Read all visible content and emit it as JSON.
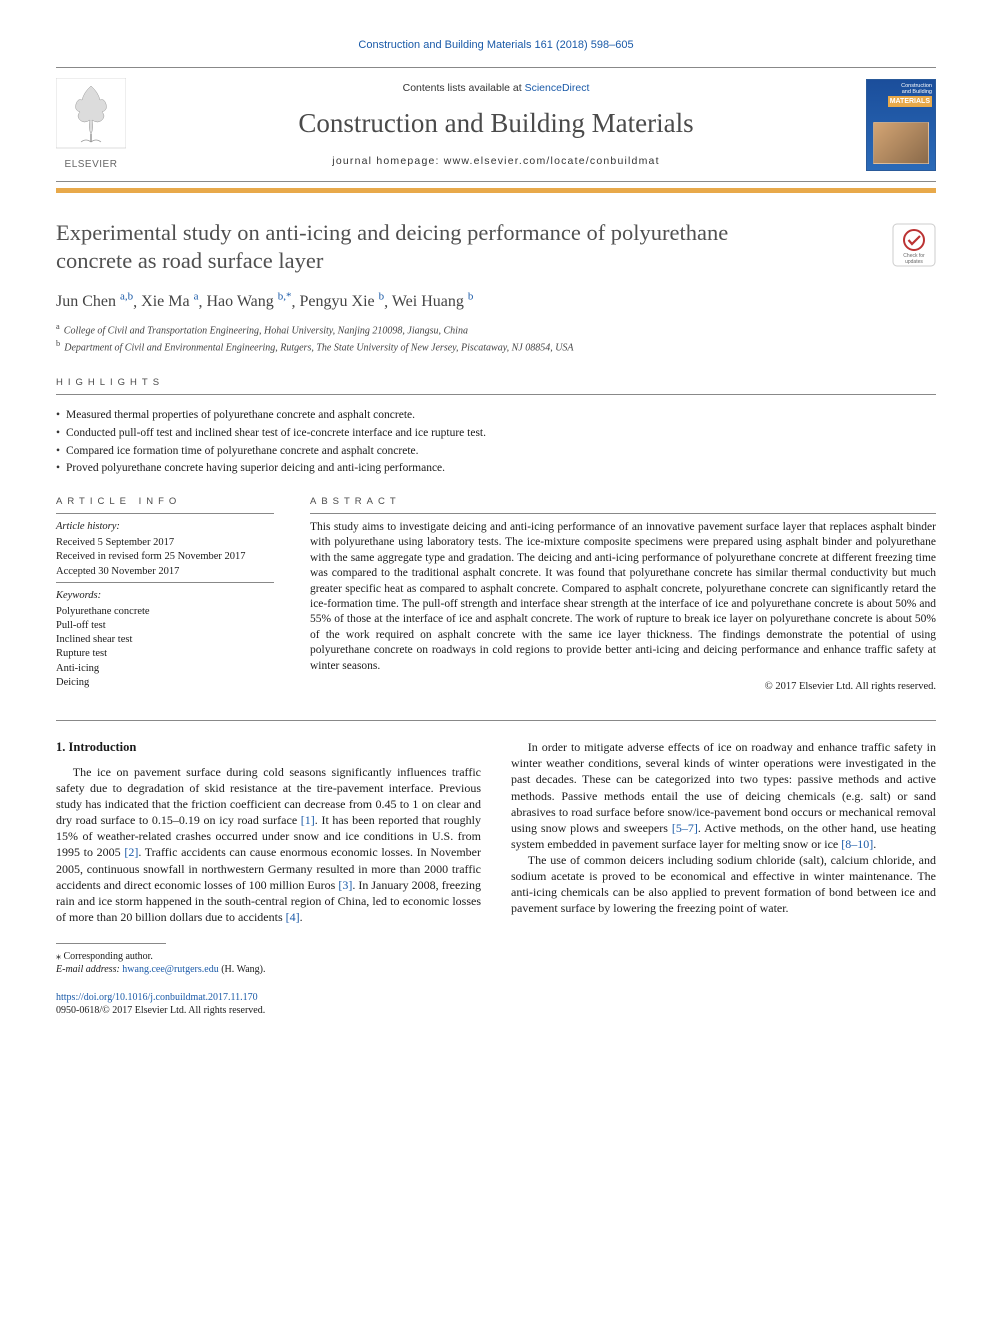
{
  "citation_header": "Construction and Building Materials 161 (2018) 598–605",
  "header": {
    "contents_prefix": "Contents lists available at ",
    "contents_link": "ScienceDirect",
    "journal_name": "Construction and Building Materials",
    "homepage_prefix": "journal homepage: ",
    "homepage_url": "www.elsevier.com/locate/conbuildmat",
    "elsevier_label": "ELSEVIER",
    "cover": {
      "line1": "Construction",
      "line2": "and Building",
      "mat": "MATERIALS"
    }
  },
  "title": "Experimental study on anti-icing and deicing performance of polyurethane concrete as road surface layer",
  "authors": [
    {
      "name": "Jun Chen",
      "sup": "a,b"
    },
    {
      "name": "Xie Ma",
      "sup": "a"
    },
    {
      "name": "Hao Wang",
      "sup": "b,",
      "corr": true
    },
    {
      "name": "Pengyu Xie",
      "sup": "b"
    },
    {
      "name": "Wei Huang",
      "sup": "b"
    }
  ],
  "affiliations": [
    {
      "letter": "a",
      "text": "College of Civil and Transportation Engineering, Hohai University, Nanjing 210098, Jiangsu, China"
    },
    {
      "letter": "b",
      "text": "Department of Civil and Environmental Engineering, Rutgers, The State University of New Jersey, Piscataway, NJ 08854, USA"
    }
  ],
  "labels": {
    "highlights": "HIGHLIGHTS",
    "article_info": "ARTICLE INFO",
    "abstract": "ABSTRACT",
    "article_history": "Article history:",
    "keywords": "Keywords:"
  },
  "highlights": [
    "Measured thermal properties of polyurethane concrete and asphalt concrete.",
    "Conducted pull-off test and inclined shear test of ice-concrete interface and ice rupture test.",
    "Compared ice formation time of polyurethane concrete and asphalt concrete.",
    "Proved polyurethane concrete having superior deicing and anti-icing performance."
  ],
  "article_history": [
    "Received 5 September 2017",
    "Received in revised form 25 November 2017",
    "Accepted 30 November 2017"
  ],
  "keywords": [
    "Polyurethane concrete",
    "Pull-off test",
    "Inclined shear test",
    "Rupture test",
    "Anti-icing",
    "Deicing"
  ],
  "abstract": "This study aims to investigate deicing and anti-icing performance of an innovative pavement surface layer that replaces asphalt binder with polyurethane using laboratory tests. The ice-mixture composite specimens were prepared using asphalt binder and polyurethane with the same aggregate type and gradation. The deicing and anti-icing performance of polyurethane concrete at different freezing time was compared to the traditional asphalt concrete. It was found that polyurethane concrete has similar thermal conductivity but much greater specific heat as compared to asphalt concrete. Compared to asphalt concrete, polyurethane concrete can significantly retard the ice-formation time. The pull-off strength and interface shear strength at the interface of ice and polyurethane concrete is about 50% and 55% of those at the interface of ice and asphalt concrete. The work of rupture to break ice layer on polyurethane concrete is about 50% of the work required on asphalt concrete with the same ice layer thickness. The findings demonstrate the potential of using polyurethane concrete on roadways in cold regions to provide better anti-icing and deicing performance and enhance traffic safety at winter seasons.",
  "copyright": "© 2017 Elsevier Ltd. All rights reserved.",
  "section1_title": "1. Introduction",
  "body": {
    "p1a": "The ice on pavement surface during cold seasons significantly influences traffic safety due to degradation of skid resistance at the tire-pavement interface. Previous study has indicated that the friction coefficient can decrease from 0.45 to 1 on clear and dry road surface to 0.15–0.19 on icy road surface ",
    "r1": "[1]",
    "p1b": ". It has been reported that roughly 15% of weather-related crashes occurred under snow and ice conditions in U.S. from 1995 to 2005 ",
    "r2": "[2]",
    "p1c": ". Traffic accidents can cause enormous economic losses. In November 2005, continuous snowfall in northwestern Germany resulted in more than 2000 traffic accidents and direct economic losses of 100 million Euros ",
    "r3": "[3]",
    "p1d": ". In January 2008, freezing rain and ice storm happened in the south-central region of China, led to economic losses of more than 20 billion dollars due to accidents ",
    "r4": "[4]",
    "p1e": ".",
    "p2a": "In order to mitigate adverse effects of ice on roadway and enhance traffic safety in winter weather conditions, several kinds of winter operations were investigated in the past decades. These can be categorized into two types: passive methods and active methods. Passive methods entail the use of deicing chemicals (e.g. salt) or sand abrasives to road surface before snow/ice-pavement bond occurs or mechanical removal using snow plows and sweepers ",
    "r57": "[5–7]",
    "p2b": ". Active methods, on the other hand, use heating system embedded in pavement surface layer for melting snow or ice ",
    "r810": "[8–10]",
    "p2c": ".",
    "p3": "The use of common deicers including sodium chloride (salt), calcium chloride, and sodium acetate is proved to be economical and effective in winter maintenance. The anti-icing chemicals can be also applied to prevent formation of bond between ice and pavement surface by lowering the freezing point of water."
  },
  "footnotes": {
    "corr_label": "⁎ Corresponding author.",
    "email_label": "E-mail address: ",
    "email": "hwang.cee@rutgers.edu",
    "email_who": " (H. Wang)."
  },
  "footer": {
    "doi": "https://doi.org/10.1016/j.conbuildmat.2017.11.170",
    "issn_line": "0950-0618/© 2017 Elsevier Ltd. All rights reserved."
  },
  "colors": {
    "link": "#1a5aa8",
    "accent": "#e8a94a",
    "title_gray": "#505050"
  }
}
